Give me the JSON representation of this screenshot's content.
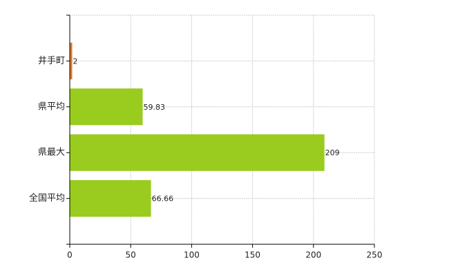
{
  "chart_data": {
    "type": "hbar",
    "categories": [
      "井手町",
      "県平均",
      "県最大",
      "全国平均"
    ],
    "values": [
      2,
      59.83,
      209,
      66.66
    ],
    "colors": [
      "#e07828",
      "#99cc1e",
      "#99cc1e",
      "#99cc1e"
    ],
    "xlim": [
      0,
      250
    ],
    "xticks": [
      0,
      50,
      100,
      150,
      200,
      250
    ],
    "grid": true
  }
}
